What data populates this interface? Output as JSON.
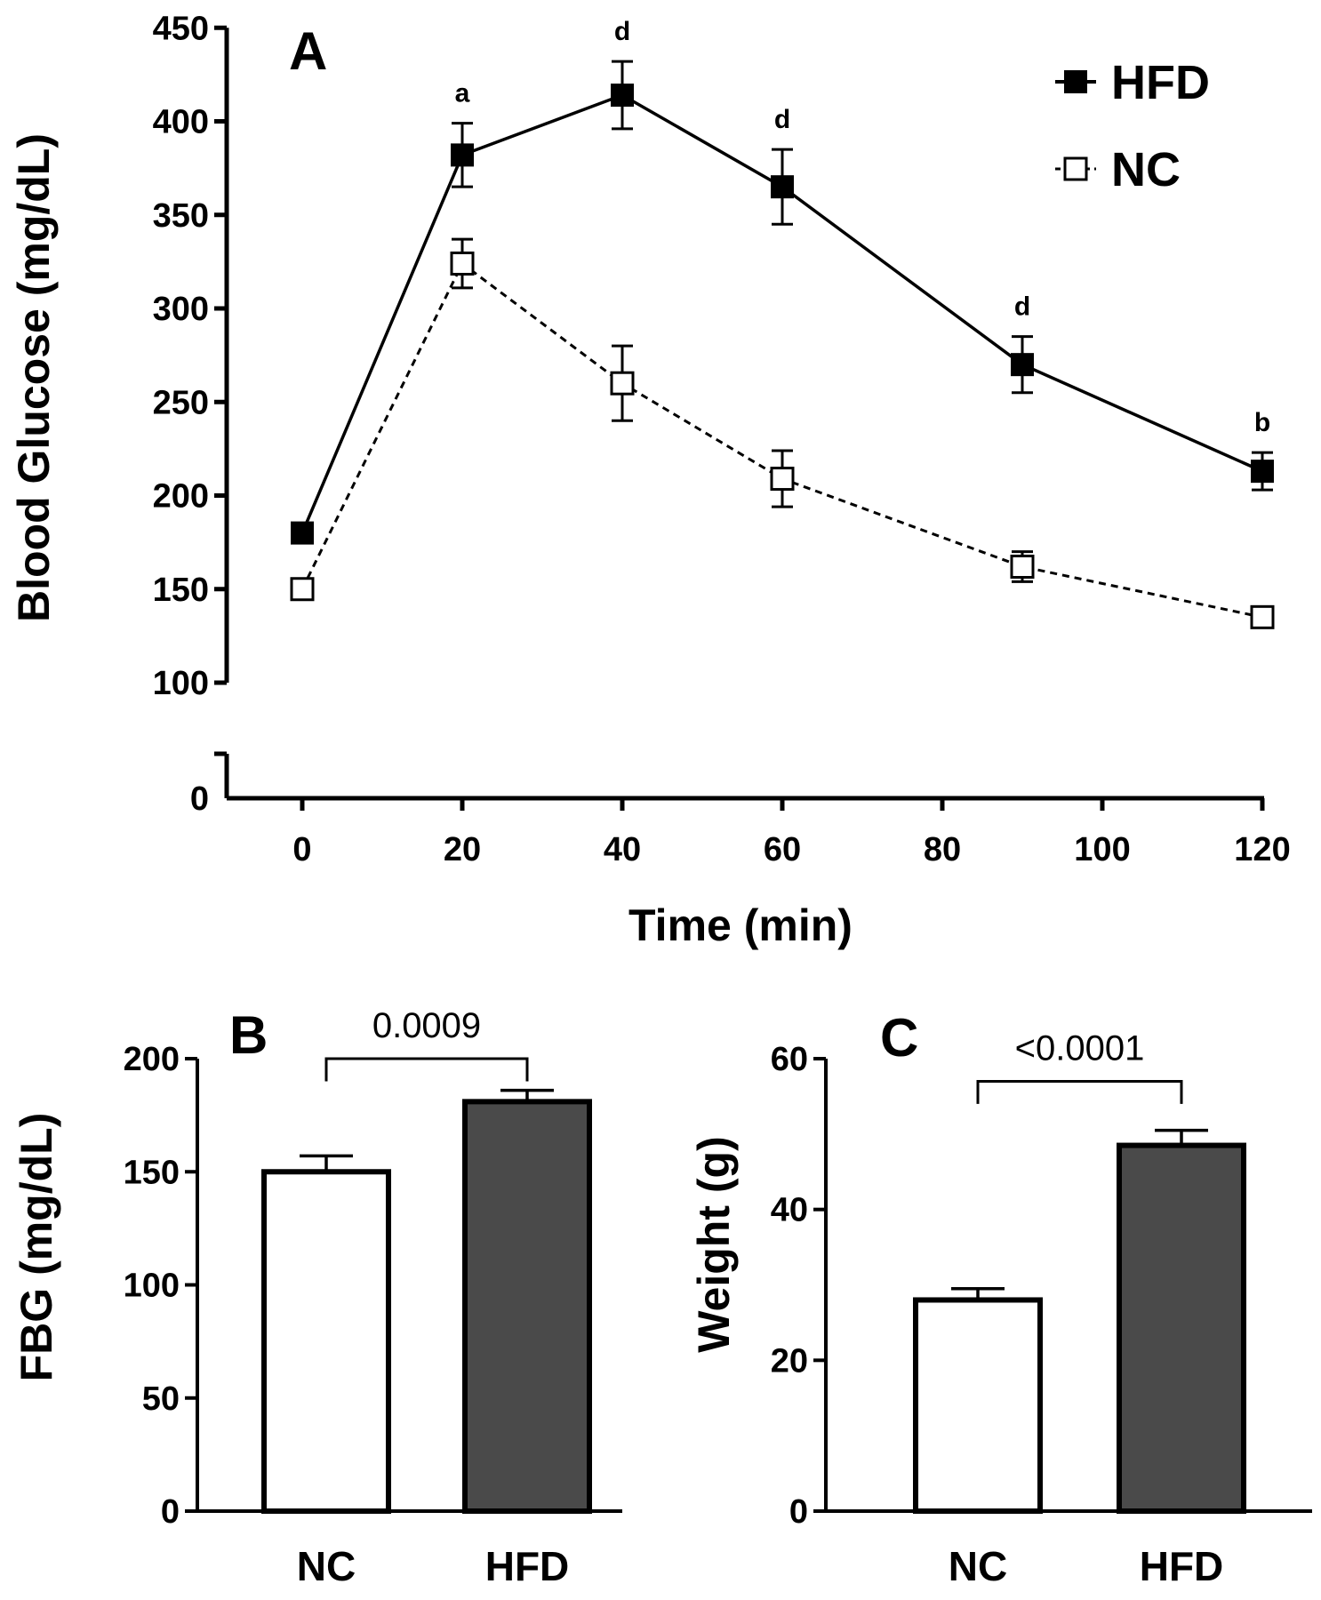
{
  "chart_data": [
    {
      "panel": "A",
      "type": "line",
      "xlabel": "Time (min)",
      "ylabel": "Blood Glucose (mg/dL)",
      "x": [
        0,
        20,
        40,
        60,
        90,
        120
      ],
      "xticks": [
        "0",
        "20",
        "40",
        "60",
        "80",
        "100",
        "120"
      ],
      "xtick_values": [
        0,
        20,
        40,
        60,
        80,
        100,
        120
      ],
      "yticks": [
        "100",
        "150",
        "200",
        "250",
        "300",
        "350",
        "400",
        "450"
      ],
      "ytick_values": [
        100,
        150,
        200,
        250,
        300,
        350,
        400,
        450
      ],
      "ybreak_label": "0",
      "ylim": [
        100,
        450
      ],
      "xlim": [
        -10,
        120
      ],
      "legend_position": "top-right",
      "series": [
        {
          "name": "HFD",
          "marker": "filled-square",
          "line": "solid",
          "values": [
            180,
            382,
            414,
            365,
            270,
            213
          ],
          "errors": [
            0,
            17,
            18,
            20,
            15,
            10
          ]
        },
        {
          "name": "NC",
          "marker": "open-square",
          "line": "dashed",
          "values": [
            150,
            324,
            260,
            209,
            162,
            135
          ],
          "errors": [
            0,
            13,
            20,
            15,
            8,
            4
          ]
        }
      ],
      "annotations": [
        {
          "x": 20,
          "text": "a"
        },
        {
          "x": 40,
          "text": "d"
        },
        {
          "x": 60,
          "text": "d"
        },
        {
          "x": 90,
          "text": "d"
        },
        {
          "x": 120,
          "text": "b"
        }
      ]
    },
    {
      "panel": "B",
      "type": "bar",
      "ylabel": "FBG (mg/dL)",
      "categories": [
        "NC",
        "HFD"
      ],
      "values": [
        150,
        181
      ],
      "errors": [
        7,
        5
      ],
      "colors": [
        "#ffffff",
        "#4a4a4a"
      ],
      "yticks": [
        "0",
        "50",
        "100",
        "150",
        "200"
      ],
      "ytick_values": [
        0,
        50,
        100,
        150,
        200
      ],
      "ylim": [
        0,
        200
      ],
      "bracket_level": 200,
      "bracket_drop": 190,
      "pvalue": "0.0009"
    },
    {
      "panel": "C",
      "type": "bar",
      "ylabel": "Weight (g)",
      "categories": [
        "NC",
        "HFD"
      ],
      "values": [
        28,
        48.5
      ],
      "errors": [
        1.5,
        2
      ],
      "colors": [
        "#ffffff",
        "#4a4a4a"
      ],
      "yticks": [
        "0",
        "20",
        "40",
        "60"
      ],
      "ytick_values": [
        0,
        20,
        40,
        60
      ],
      "ylim": [
        0,
        60
      ],
      "bracket_level": 57,
      "bracket_drop": 54,
      "pvalue": "<0.0001"
    }
  ]
}
